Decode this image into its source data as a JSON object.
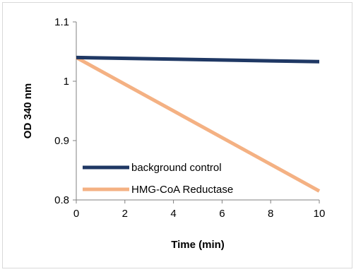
{
  "chart_data": {
    "type": "line",
    "title": "",
    "xlabel": "Time (min)",
    "ylabel": "OD 340 nm",
    "xlim": [
      0,
      10
    ],
    "ylim": [
      0.8,
      1.1
    ],
    "xticks": [
      "0",
      "2",
      "4",
      "6",
      "8",
      "10"
    ],
    "yticks": [
      "0.8",
      "0.9",
      "1",
      "1.1"
    ],
    "grid": false,
    "legend": "bottom-left",
    "series": [
      {
        "name": "background control",
        "color": "#1f3864",
        "x": [
          0,
          10
        ],
        "y": [
          1.04,
          1.033
        ]
      },
      {
        "name": "HMG-CoA Reductase",
        "color": "#f4b183",
        "x": [
          0,
          10
        ],
        "y": [
          1.04,
          0.815
        ]
      }
    ]
  }
}
